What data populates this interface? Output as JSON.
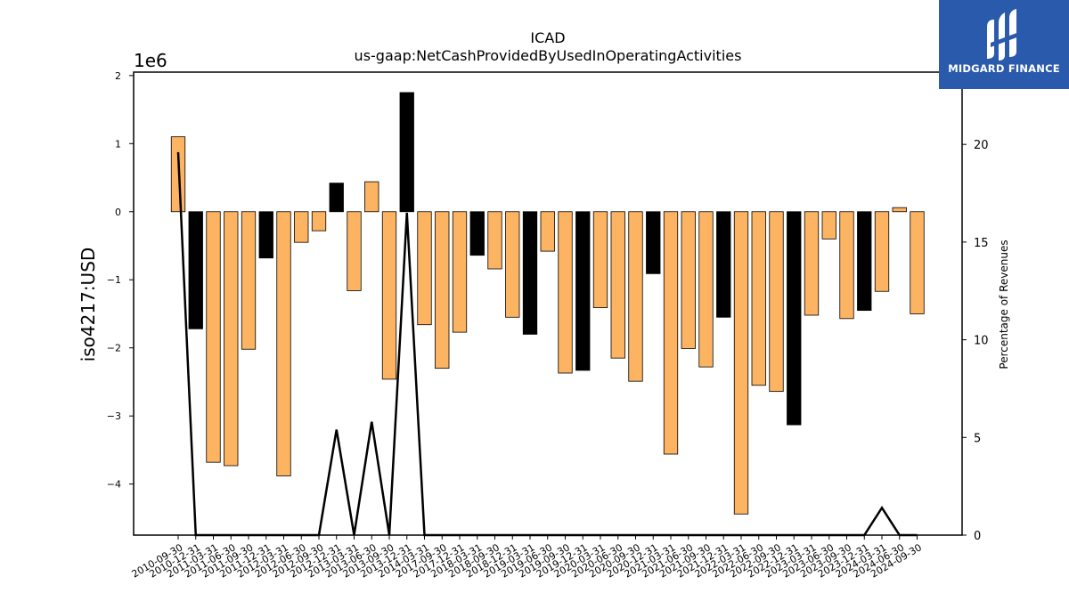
{
  "chart_data": {
    "type": "bar",
    "title": "ICAD",
    "subtitle": "us-gaap:NetCashProvidedByUsedInOperatingActivities",
    "ylabel": "iso4217:USD",
    "ylabel_right": "Percentage of Revenues",
    "y_offset_label": "1e6",
    "y_scale": 1000000,
    "ylim": [
      -4.75,
      2.05
    ],
    "yticks": [
      2,
      1,
      0,
      -1,
      -2,
      -3,
      -4
    ],
    "ylim_right": [
      0,
      23.7
    ],
    "yticks_right": [
      0,
      5,
      10,
      15,
      20
    ],
    "colors": {
      "annual": "#000000",
      "quarterly": "#fdb462",
      "line": "#000000"
    },
    "categories": [
      "2010-09-30",
      "2010-12-31",
      "2011-03-31",
      "2011-06-30",
      "2011-09-30",
      "2011-12-31",
      "2012-03-31",
      "2012-06-30",
      "2012-09-30",
      "2012-12-31",
      "2013-03-31",
      "2013-06-30",
      "2013-09-30",
      "2013-12-31",
      "2014-03-31",
      "2017-09-30",
      "2017-12-31",
      "2018-03-31",
      "2018-09-30",
      "2018-12-31",
      "2019-03-31",
      "2019-06-30",
      "2019-09-30",
      "2019-12-31",
      "2020-03-31",
      "2020-06-30",
      "2020-09-30",
      "2020-12-31",
      "2021-03-31",
      "2021-06-30",
      "2021-09-30",
      "2021-12-31",
      "2022-03-31",
      "2022-06-30",
      "2022-09-30",
      "2022-12-31",
      "2023-03-31",
      "2023-06-30",
      "2023-09-30",
      "2023-12-31",
      "2024-03-31",
      "2024-06-30",
      "2024-09-30"
    ],
    "values": [
      1.1,
      -1.72,
      -3.68,
      -3.73,
      -2.02,
      -0.68,
      -3.88,
      -0.45,
      -0.28,
      0.42,
      -1.16,
      0.44,
      -2.46,
      1.75,
      -1.66,
      -2.3,
      -1.77,
      -0.64,
      -0.84,
      -1.55,
      -1.8,
      -0.58,
      -2.37,
      -2.33,
      -1.41,
      -2.15,
      -2.49,
      -0.91,
      -3.56,
      -2.01,
      -2.28,
      -1.55,
      -4.44,
      -2.55,
      -2.64,
      -3.13,
      -1.52,
      -0.4,
      -1.57,
      -1.45,
      -1.17,
      0.06,
      -1.5
    ],
    "bar_kind": [
      "quarterly",
      "annual",
      "quarterly",
      "quarterly",
      "quarterly",
      "annual",
      "quarterly",
      "quarterly",
      "quarterly",
      "annual",
      "quarterly",
      "quarterly",
      "quarterly",
      "annual",
      "quarterly",
      "quarterly",
      "quarterly",
      "annual",
      "quarterly",
      "quarterly",
      "annual",
      "quarterly",
      "quarterly",
      "annual",
      "quarterly",
      "quarterly",
      "quarterly",
      "annual",
      "quarterly",
      "quarterly",
      "quarterly",
      "annual",
      "quarterly",
      "quarterly",
      "quarterly",
      "annual",
      "quarterly",
      "quarterly",
      "quarterly",
      "annual",
      "quarterly",
      "quarterly",
      "quarterly"
    ],
    "pct_of_revenue_line": [
      19.6,
      0,
      0,
      0,
      0,
      0,
      0,
      0,
      0,
      5.4,
      0,
      5.8,
      0,
      16.5,
      0,
      0,
      0,
      0,
      0,
      0,
      0,
      0,
      0,
      0,
      0,
      0,
      0,
      0,
      0,
      0,
      0,
      0,
      0,
      0,
      0,
      0,
      0,
      0,
      0,
      0,
      1.4,
      0,
      0
    ],
    "grid": false,
    "legend": "none"
  },
  "branding": {
    "logo_text": "MIDGARD FINANCE",
    "logo_icon": "midgard-finance-logo-icon"
  }
}
